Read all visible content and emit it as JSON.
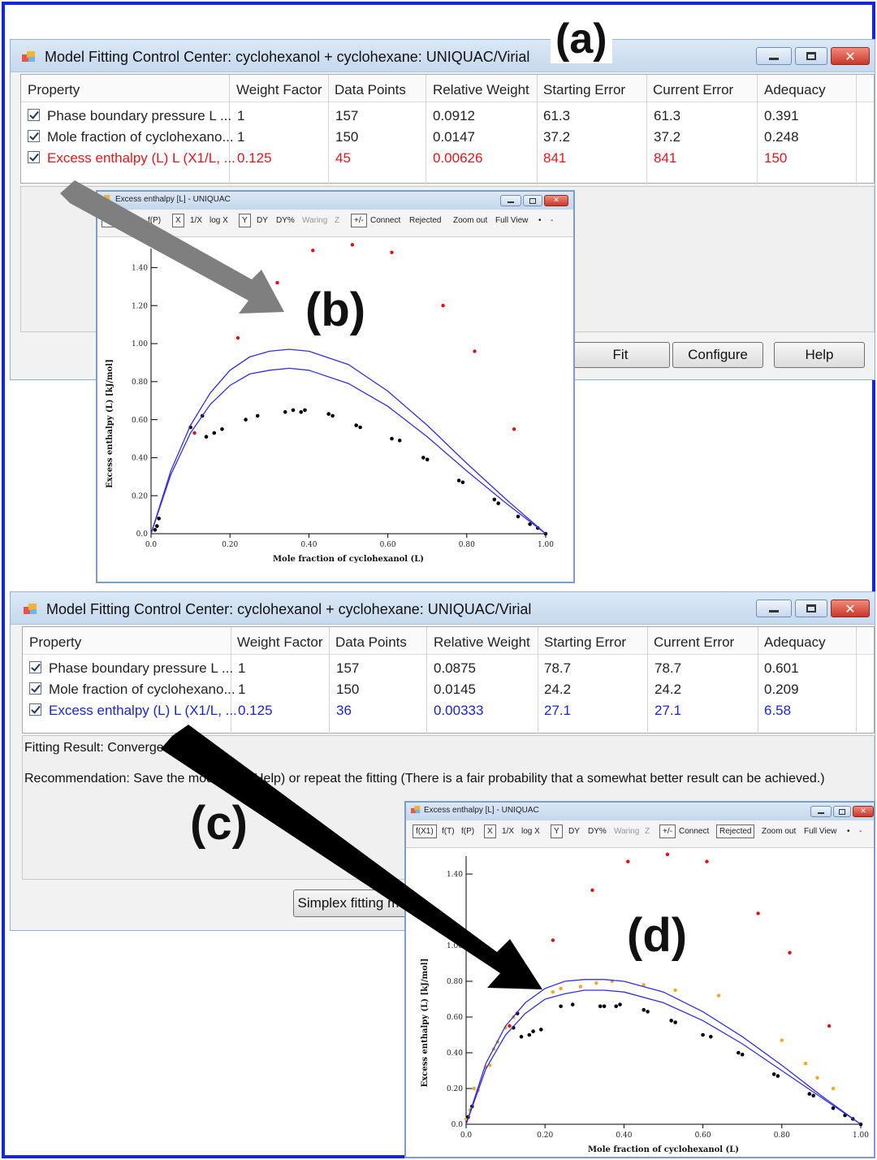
{
  "panel_labels": {
    "a": "(a)",
    "b": "(b)",
    "c": "(c)",
    "d": "(d)"
  },
  "colors": {
    "frame": "#1428d8",
    "highlight_red": "#e8141b",
    "highlight_blue": "#1a24d6",
    "fit_curve": "#3030e0",
    "rejected": "#e01010",
    "orange": "#f5a623"
  },
  "top_window": {
    "title": "Model Fitting Control Center: cyclohexanol + cyclohexane: UNIQUAC/Virial",
    "icon": "app-icon",
    "columns": [
      "Property",
      "Weight Factor",
      "Data Points",
      "Relative Weight",
      "Starting Error",
      "Current Error",
      "Adequacy"
    ],
    "rows": [
      {
        "property": "Phase boundary pressure L ...",
        "weight": "1",
        "points": "157",
        "relweight": "0.0912",
        "start_err": "61.3",
        "cur_err": "61.3",
        "adequacy": "0.391",
        "checked": true
      },
      {
        "property": "Mole fraction of cyclohexano...",
        "weight": "1",
        "points": "150",
        "relweight": "0.0147",
        "start_err": "37.2",
        "cur_err": "37.2",
        "adequacy": "0.248",
        "checked": true
      },
      {
        "property": "Excess enthalpy (L) L (X1/L, ...",
        "weight": "0.125",
        "points": "45",
        "relweight": "0.00626",
        "start_err": "841",
        "cur_err": "841",
        "adequacy": "150",
        "checked": true,
        "highlight": "red"
      }
    ],
    "buttons": {
      "fit": "Fit",
      "configure": "Configure",
      "help": "Help"
    }
  },
  "bottom_window": {
    "title": "Model Fitting Control Center: cyclohexanol + cyclohexane: UNIQUAC/Virial",
    "columns": [
      "Property",
      "Weight Factor",
      "Data Points",
      "Relative Weight",
      "Starting Error",
      "Current Error",
      "Adequacy"
    ],
    "rows": [
      {
        "property": "Phase boundary pressure L ...",
        "weight": "1",
        "points": "157",
        "relweight": "0.0875",
        "start_err": "78.7",
        "cur_err": "78.7",
        "adequacy": "0.601",
        "checked": true
      },
      {
        "property": "Mole fraction of cyclohexano...",
        "weight": "1",
        "points": "150",
        "relweight": "0.0145",
        "start_err": "24.2",
        "cur_err": "24.2",
        "adequacy": "0.209",
        "checked": true
      },
      {
        "property": "Excess enthalpy (L) L (X1/L, ...",
        "weight": "0.125",
        "points": "36",
        "relweight": "0.00333",
        "start_err": "27.1",
        "cur_err": "27.1",
        "adequacy": "6.58",
        "checked": true,
        "highlight": "blue"
      }
    ],
    "fit_result": "Fitting Result: Converged",
    "recommendation_left": "Recommendation: Save the mode",
    "recommendation_right": "Help) or repeat the fitting (There is a fair probability that a somewhat better result can be achieved.)",
    "simplex_button": "Simplex fitting met"
  },
  "plot_b": {
    "title": "Excess enthalpy [L] - UNIQUAC",
    "toolbar": [
      "f(X1)",
      "f(P)",
      "X",
      "1/X",
      "log X",
      "Y",
      "DY",
      "DY%",
      "Waring",
      "Z",
      "+/-",
      "Connect",
      "Rejected",
      "Zoom out",
      "Full View",
      "•",
      "-"
    ]
  },
  "plot_d": {
    "title": "Excess enthalpy [L] - UNIQUAC",
    "toolbar": [
      "f(X1)",
      "f(T)",
      "f(P)",
      "X",
      "1/X",
      "log X",
      "Y",
      "DY",
      "DY%",
      "Waring",
      "Z",
      "+/-",
      "Connect",
      "Rejected",
      "Zoom out",
      "Full View",
      "•",
      "-"
    ]
  },
  "chart_data": [
    {
      "type": "scatter",
      "xlabel": "Mole fraction of cyclohexanol (L)",
      "ylabel": "Excess enthalpy (L) [kJ/mol]",
      "xlim": [
        0,
        1.0
      ],
      "ylim": [
        0,
        1.5
      ],
      "x_ticks": [
        "0.0",
        "0.20",
        "0.40",
        "0.60",
        "0.80",
        "1.00"
      ],
      "y_ticks": [
        "0.0",
        "0.20",
        "0.40",
        "0.60",
        "0.80",
        "1.00",
        "1.20",
        "1.40"
      ],
      "series": [
        {
          "kind": "rejected",
          "x": [
            0.11,
            0.22,
            0.32,
            0.41,
            0.51,
            0.61,
            0.74,
            0.82,
            0.92
          ],
          "y": [
            0.53,
            1.03,
            1.32,
            1.49,
            1.52,
            1.48,
            1.2,
            0.96,
            0.55
          ]
        },
        {
          "kind": "accepted",
          "x": [
            0.01,
            0.015,
            0.02,
            0.1,
            0.13,
            0.14,
            0.16,
            0.18,
            0.24,
            0.27,
            0.34,
            0.36,
            0.38,
            0.39,
            0.45,
            0.46,
            0.52,
            0.53,
            0.61,
            0.63,
            0.69,
            0.7,
            0.78,
            0.79,
            0.87,
            0.88,
            0.93,
            0.96,
            0.98,
            1.0
          ],
          "y": [
            0.02,
            0.04,
            0.08,
            0.56,
            0.62,
            0.51,
            0.53,
            0.55,
            0.6,
            0.62,
            0.64,
            0.65,
            0.64,
            0.65,
            0.63,
            0.62,
            0.57,
            0.56,
            0.5,
            0.49,
            0.4,
            0.39,
            0.28,
            0.27,
            0.18,
            0.16,
            0.09,
            0.05,
            0.03,
            0.0
          ]
        },
        {
          "kind": "fit-upper",
          "x": [
            0.0,
            0.05,
            0.1,
            0.15,
            0.2,
            0.25,
            0.3,
            0.35,
            0.4,
            0.5,
            0.6,
            0.7,
            0.8,
            0.9,
            1.0
          ],
          "y": [
            0.0,
            0.33,
            0.57,
            0.74,
            0.86,
            0.93,
            0.96,
            0.97,
            0.96,
            0.89,
            0.75,
            0.57,
            0.37,
            0.18,
            0.0
          ]
        },
        {
          "kind": "fit-lower",
          "x": [
            0.0,
            0.05,
            0.1,
            0.15,
            0.2,
            0.25,
            0.3,
            0.35,
            0.4,
            0.5,
            0.6,
            0.7,
            0.8,
            0.9,
            1.0
          ],
          "y": [
            0.0,
            0.31,
            0.53,
            0.68,
            0.78,
            0.84,
            0.86,
            0.87,
            0.86,
            0.79,
            0.67,
            0.51,
            0.33,
            0.16,
            0.0
          ]
        }
      ]
    },
    {
      "type": "scatter",
      "xlabel": "Mole fraction of cyclohexanol (L)",
      "ylabel": "Excess enthalpy (L) [kJ/mol]",
      "xlim": [
        0,
        1.0
      ],
      "ylim": [
        0,
        1.5
      ],
      "x_ticks": [
        "0.0",
        "0.20",
        "0.40",
        "0.60",
        "0.80",
        "1.00"
      ],
      "y_ticks": [
        "0.0",
        "0.20",
        "0.40",
        "0.60",
        "0.80",
        "1.00",
        "1.40"
      ],
      "series": [
        {
          "kind": "rejected",
          "x": [
            0.11,
            0.22,
            0.32,
            0.41,
            0.51,
            0.61,
            0.74,
            0.82,
            0.92
          ],
          "y": [
            0.55,
            1.03,
            1.31,
            1.47,
            1.51,
            1.47,
            1.18,
            0.96,
            0.55
          ]
        },
        {
          "kind": "orange",
          "x": [
            0.0,
            0.01,
            0.02,
            0.03,
            0.05,
            0.06,
            0.07,
            0.08,
            0.1,
            0.12,
            0.22,
            0.24,
            0.29,
            0.33,
            0.37,
            0.45,
            0.53,
            0.64,
            0.8,
            0.86,
            0.89,
            0.93
          ],
          "y": [
            0.03,
            0.08,
            0.2,
            0.19,
            0.32,
            0.33,
            0.42,
            0.46,
            0.54,
            0.6,
            0.74,
            0.76,
            0.77,
            0.79,
            0.8,
            0.78,
            0.75,
            0.72,
            0.47,
            0.34,
            0.26,
            0.2
          ]
        },
        {
          "kind": "accepted",
          "x": [
            0.005,
            0.015,
            0.12,
            0.13,
            0.14,
            0.16,
            0.17,
            0.19,
            0.24,
            0.27,
            0.34,
            0.35,
            0.38,
            0.39,
            0.45,
            0.46,
            0.52,
            0.53,
            0.6,
            0.62,
            0.69,
            0.7,
            0.78,
            0.79,
            0.87,
            0.88,
            0.93,
            0.96,
            0.98,
            1.0
          ],
          "y": [
            0.04,
            0.1,
            0.54,
            0.62,
            0.49,
            0.5,
            0.52,
            0.53,
            0.66,
            0.67,
            0.66,
            0.66,
            0.66,
            0.67,
            0.64,
            0.63,
            0.58,
            0.57,
            0.5,
            0.49,
            0.4,
            0.39,
            0.28,
            0.27,
            0.17,
            0.16,
            0.09,
            0.05,
            0.03,
            0.0
          ]
        },
        {
          "kind": "fit-upper",
          "x": [
            0.0,
            0.05,
            0.1,
            0.15,
            0.2,
            0.25,
            0.3,
            0.35,
            0.4,
            0.5,
            0.6,
            0.7,
            0.8,
            0.9,
            1.0
          ],
          "y": [
            0.0,
            0.34,
            0.55,
            0.68,
            0.76,
            0.8,
            0.81,
            0.81,
            0.8,
            0.74,
            0.63,
            0.49,
            0.33,
            0.16,
            0.0
          ]
        },
        {
          "kind": "fit-lower",
          "x": [
            0.0,
            0.05,
            0.1,
            0.15,
            0.2,
            0.25,
            0.3,
            0.35,
            0.4,
            0.5,
            0.6,
            0.7,
            0.8,
            0.9,
            1.0
          ],
          "y": [
            0.0,
            0.31,
            0.5,
            0.62,
            0.7,
            0.73,
            0.75,
            0.75,
            0.74,
            0.68,
            0.58,
            0.45,
            0.3,
            0.15,
            0.0
          ]
        }
      ]
    }
  ]
}
